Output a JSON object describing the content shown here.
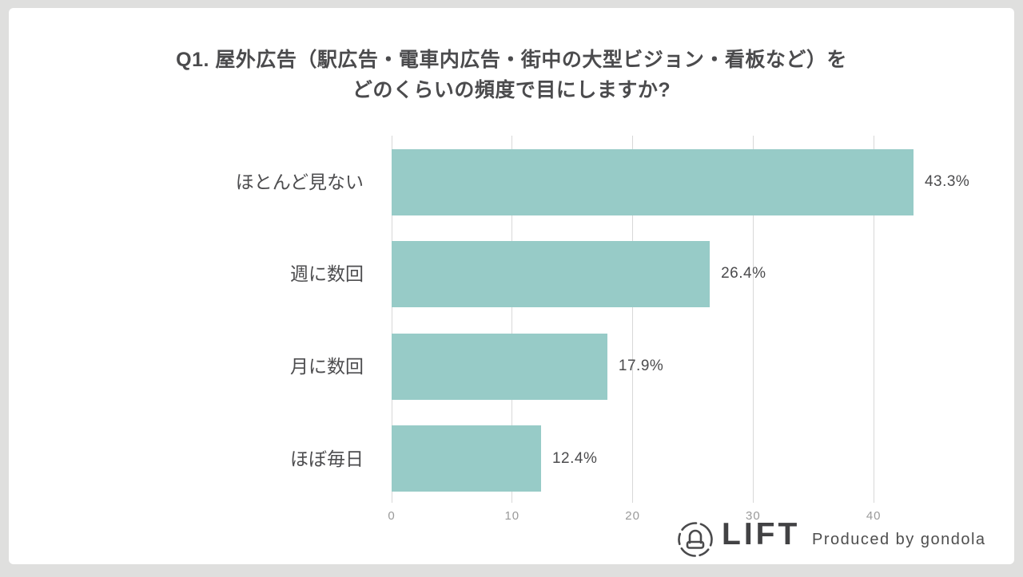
{
  "title": {
    "line1": "Q1. 屋外広告（駅広告・電車内広告・街中の大型ビジョン・看板など）を",
    "line2": "どのくらいの頻度で目にしますか?"
  },
  "chart_data": {
    "type": "bar",
    "orientation": "horizontal",
    "title": "Q1. 屋外広告（駅広告・電車内広告・街中の大型ビジョン・看板など）をどのくらいの頻度で目にしますか?",
    "categories": [
      "ほとんど見ない",
      "週に数回",
      "月に数回",
      "ほぼ毎日"
    ],
    "values": [
      43.3,
      26.4,
      17.9,
      12.4
    ],
    "value_labels": [
      "43.3%",
      "26.4%",
      "17.9%",
      "12.4%"
    ],
    "unit": "%",
    "x_ticks": [
      "0",
      "10",
      "20",
      "30",
      "40"
    ],
    "xlim": [
      0,
      45
    ],
    "grid": true,
    "legend": "none",
    "bar_color": "#97CBC7"
  },
  "footer": {
    "brand": "LIFT",
    "tagline": "Produced by gondola"
  },
  "colors": {
    "background": "#DFDFDE",
    "card": "#FFFFFF",
    "bar": "#97CBC7",
    "gridline": "#D8D8D8",
    "title_text": "#4B4B4D",
    "category_text": "#4D4D4F",
    "value_text": "#4B4B4D",
    "tick_text": "#9A9A9A",
    "logo_text": "#424244"
  }
}
